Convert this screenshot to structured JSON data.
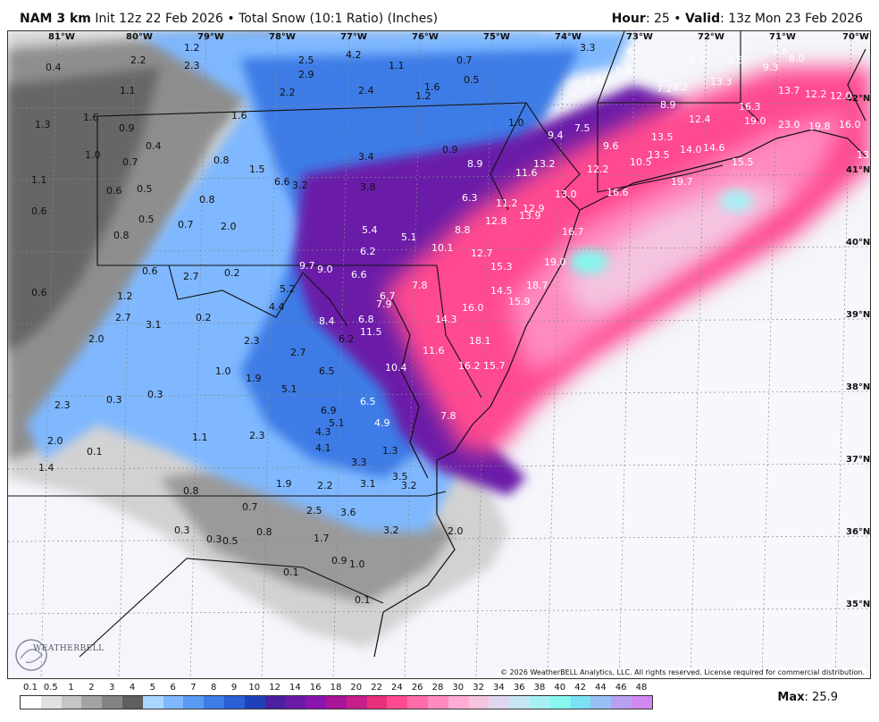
{
  "header": {
    "model": "NAM 3 km",
    "init": "Init 12z 22 Feb 2026",
    "sep": "•",
    "product": "Total Snow (10:1 Ratio) (Inches)",
    "hour_label": "Hour",
    "hour_value": ": 25",
    "valid_label": "Valid",
    "valid_value": ": 13z Mon 23 Feb 2026"
  },
  "map": {
    "lon_labels": [
      "81°W",
      "80°W",
      "79°W",
      "78°W",
      "77°W",
      "76°W",
      "75°W",
      "74°W",
      "73°W",
      "72°W",
      "71°W",
      "70°W"
    ],
    "lat_labels": [
      "42°N",
      "41°N",
      "40°N",
      "39°N",
      "38°N",
      "37°N",
      "36°N",
      "35°N"
    ],
    "copyright": "© 2026 WeatherBELL Analytics, LLC. All rights reserved. License required for commercial distribution.",
    "logo_text": "WEATHERBELL",
    "snow_values": [
      {
        "v": "1.2"
      },
      {
        "v": "2.2"
      },
      {
        "v": "2.3"
      },
      {
        "v": "0.4"
      },
      {
        "v": "2.5"
      },
      {
        "v": "4.2"
      },
      {
        "v": "1.1"
      },
      {
        "v": "0.7"
      },
      {
        "v": "3.3"
      },
      {
        "v": "4.6"
      },
      {
        "v": "6.2"
      },
      {
        "v": "8.5"
      },
      {
        "v": "6.6"
      },
      {
        "v": "8.0"
      },
      {
        "v": "9.3"
      },
      {
        "v": "2.9"
      },
      {
        "v": "0.5"
      },
      {
        "v": "5.8"
      },
      {
        "v": "4.9"
      },
      {
        "v": "13.3"
      },
      {
        "v": "7.2"
      },
      {
        "v": "8.2"
      },
      {
        "v": "13.7"
      },
      {
        "v": "12.2"
      },
      {
        "v": "12.0"
      },
      {
        "v": "1.1"
      },
      {
        "v": "2.2"
      },
      {
        "v": "2.4"
      },
      {
        "v": "1.2"
      },
      {
        "v": "1.6"
      },
      {
        "v": "8.9"
      },
      {
        "v": "16.3"
      },
      {
        "v": "1.6"
      },
      {
        "v": "1.6"
      },
      {
        "v": "12.4"
      },
      {
        "v": "19.0"
      },
      {
        "v": "23.0"
      },
      {
        "v": "19.8"
      },
      {
        "v": "16.0"
      },
      {
        "v": "1.3"
      },
      {
        "v": "0.9"
      },
      {
        "v": "1.0"
      },
      {
        "v": "7.5"
      },
      {
        "v": "9.4"
      },
      {
        "v": "13.5"
      },
      {
        "v": "9.6"
      },
      {
        "v": "0.4"
      },
      {
        "v": "0.9"
      },
      {
        "v": "1.0"
      },
      {
        "v": "0.7"
      },
      {
        "v": "0.8"
      },
      {
        "v": "3.4"
      },
      {
        "v": "8.9"
      },
      {
        "v": "13.2"
      },
      {
        "v": "12.2"
      },
      {
        "v": "10.5"
      },
      {
        "v": "13.5"
      },
      {
        "v": "14.0"
      },
      {
        "v": "14.6"
      },
      {
        "v": "15.5"
      },
      {
        "v": "13.3"
      },
      {
        "v": "1.1"
      },
      {
        "v": "1.5"
      },
      {
        "v": "11.6"
      },
      {
        "v": "19.7"
      },
      {
        "v": "0.6"
      },
      {
        "v": "0.5"
      },
      {
        "v": "6.6"
      },
      {
        "v": "3.2"
      },
      {
        "v": "3.8"
      },
      {
        "v": "16.6"
      },
      {
        "v": "13.0"
      },
      {
        "v": "0.8"
      },
      {
        "v": "6.3"
      },
      {
        "v": "11.2"
      },
      {
        "v": "12.9"
      },
      {
        "v": "0.6"
      },
      {
        "v": "0.5"
      },
      {
        "v": "0.7"
      },
      {
        "v": "2.0"
      },
      {
        "v": "12.8"
      },
      {
        "v": "13.9"
      },
      {
        "v": "0.8"
      },
      {
        "v": "5.4"
      },
      {
        "v": "5.1"
      },
      {
        "v": "8.8"
      },
      {
        "v": "16.7"
      },
      {
        "v": "10.1"
      },
      {
        "v": "6.2"
      },
      {
        "v": "12.7"
      },
      {
        "v": "19.0"
      },
      {
        "v": "0.6"
      },
      {
        "v": "0.2"
      },
      {
        "v": "9.7"
      },
      {
        "v": "9.0"
      },
      {
        "v": "6.6"
      },
      {
        "v": "15.3"
      },
      {
        "v": "2.7"
      },
      {
        "v": "7.8"
      },
      {
        "v": "18.7"
      },
      {
        "v": "0.6"
      },
      {
        "v": "1.2"
      },
      {
        "v": "5.2"
      },
      {
        "v": "6.7"
      },
      {
        "v": "14.5"
      },
      {
        "v": "4.4"
      },
      {
        "v": "7.9"
      },
      {
        "v": "15.9"
      },
      {
        "v": "16.0"
      },
      {
        "v": "2.7"
      },
      {
        "v": "0.2"
      },
      {
        "v": "8.4"
      },
      {
        "v": "6.8"
      },
      {
        "v": "14.3"
      },
      {
        "v": "3.1"
      },
      {
        "v": "11.5"
      },
      {
        "v": "6.2"
      },
      {
        "v": "18.1"
      },
      {
        "v": "2.0"
      },
      {
        "v": "2.3"
      },
      {
        "v": "2.7"
      },
      {
        "v": "11.6"
      },
      {
        "v": "1.0"
      },
      {
        "v": "6.5"
      },
      {
        "v": "10.4"
      },
      {
        "v": "16.2"
      },
      {
        "v": "15.7"
      },
      {
        "v": "0.3"
      },
      {
        "v": "1.9"
      },
      {
        "v": "5.1"
      },
      {
        "v": "0.3"
      },
      {
        "v": "6.5"
      },
      {
        "v": "2.3"
      },
      {
        "v": "6.9"
      },
      {
        "v": "7.8"
      },
      {
        "v": "5.1"
      },
      {
        "v": "4.9"
      },
      {
        "v": "4.3"
      },
      {
        "v": "2.0"
      },
      {
        "v": "1.1"
      },
      {
        "v": "2.3"
      },
      {
        "v": "4.1"
      },
      {
        "v": "0.1"
      },
      {
        "v": "1.3"
      },
      {
        "v": "3.3"
      },
      {
        "v": "1.4"
      },
      {
        "v": "3.5"
      },
      {
        "v": "1.9"
      },
      {
        "v": "2.2"
      },
      {
        "v": "3.1"
      },
      {
        "v": "3.2"
      },
      {
        "v": "0.8"
      },
      {
        "v": "0.7"
      },
      {
        "v": "2.5"
      },
      {
        "v": "3.6"
      },
      {
        "v": "0.3"
      },
      {
        "v": "0.3"
      },
      {
        "v": "0.5"
      },
      {
        "v": "0.8"
      },
      {
        "v": "1.7"
      },
      {
        "v": "3.2"
      },
      {
        "v": "2.0"
      },
      {
        "v": "0.9"
      },
      {
        "v": "1.0"
      },
      {
        "v": "0.1"
      },
      {
        "v": "0.1"
      }
    ]
  },
  "legend": {
    "ticks": [
      "0.1",
      "0.5",
      "1",
      "2",
      "3",
      "4",
      "5",
      "6",
      "7",
      "8",
      "9",
      "10",
      "12",
      "14",
      "16",
      "18",
      "20",
      "22",
      "24",
      "26",
      "28",
      "30",
      "32",
      "34",
      "36",
      "38",
      "40",
      "42",
      "44",
      "46",
      "48"
    ],
    "colors": [
      "#ffffff",
      "#e1e1e1",
      "#c4c4c4",
      "#a3a3a3",
      "#838383",
      "#5f5f5f",
      "#a9d6ff",
      "#7fb8ff",
      "#5a9af5",
      "#3c7ce6",
      "#2a5fd6",
      "#1f41b8",
      "#4b1fa0",
      "#6a1aa8",
      "#8a14b0",
      "#a8149a",
      "#c81e8a",
      "#e8307e",
      "#ff4a90",
      "#ff6aa8",
      "#ff8ac0",
      "#ffacd4",
      "#f4c4e0",
      "#e0d6f0",
      "#c6e6f6",
      "#a6f0f4",
      "#86f6ee",
      "#7ae0f4",
      "#98c0f4",
      "#b8a0f0",
      "#d088f0"
    ],
    "max_label": "Max",
    "max_value": ": 25.9"
  }
}
